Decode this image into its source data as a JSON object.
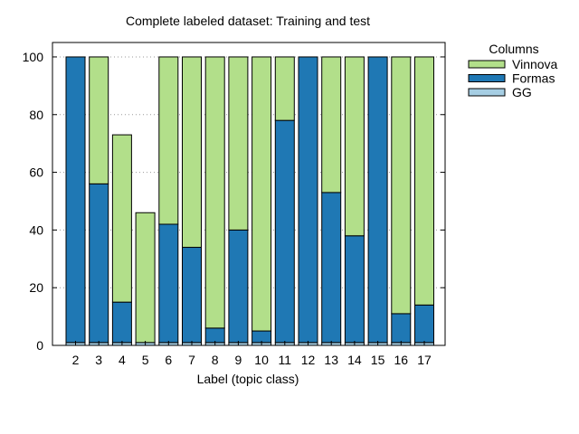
{
  "chart_data": {
    "type": "bar",
    "stacked": true,
    "title": "Complete labeled dataset: Training and test",
    "xlabel": "Label (topic class)",
    "ylabel": "",
    "ylim": [
      0,
      105
    ],
    "yticks": [
      0,
      20,
      40,
      60,
      80,
      100
    ],
    "grid": "y-dotted",
    "legend_title": "Columns",
    "legend_position": "outside-right",
    "categories": [
      "2",
      "3",
      "4",
      "5",
      "6",
      "7",
      "8",
      "9",
      "10",
      "11",
      "12",
      "13",
      "14",
      "15",
      "16",
      "17"
    ],
    "series": [
      {
        "name": "GG",
        "color": "#a6cee3",
        "values": [
          1,
          1,
          1,
          1,
          1,
          1,
          1,
          1,
          1,
          1,
          1,
          1,
          1,
          1,
          1,
          1
        ]
      },
      {
        "name": "Formas",
        "color": "#1f78b4",
        "values": [
          99,
          55,
          14,
          0,
          41,
          33,
          5,
          39,
          4,
          77,
          99,
          52,
          37,
          99,
          10,
          13
        ]
      },
      {
        "name": "Vinnova",
        "color": "#b2df8a",
        "values": [
          0,
          44,
          58,
          45,
          58,
          66,
          94,
          60,
          95,
          22,
          0,
          47,
          62,
          0,
          89,
          86
        ]
      }
    ],
    "legend_order": [
      "Vinnova",
      "Formas",
      "GG"
    ]
  }
}
